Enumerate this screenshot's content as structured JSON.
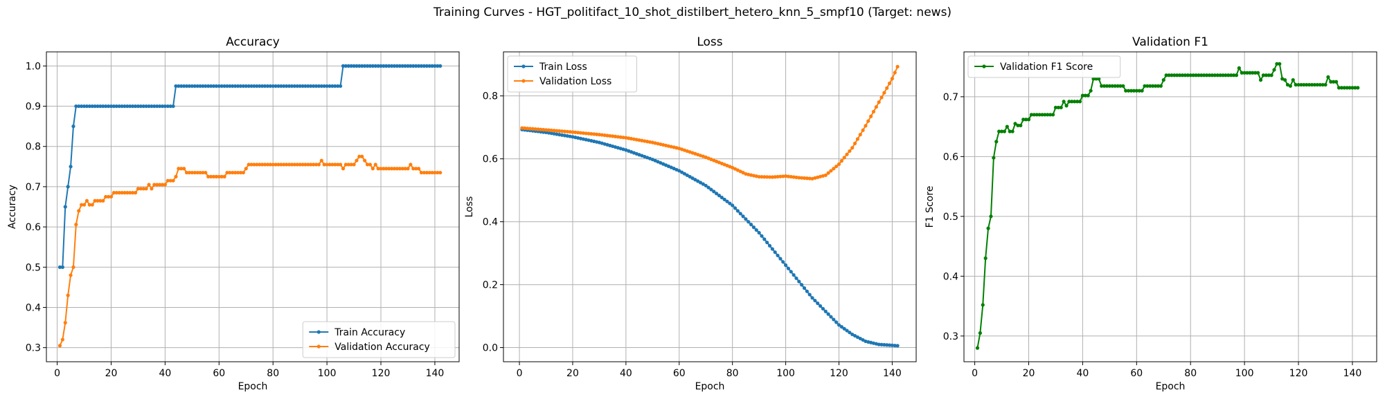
{
  "suptitle": "Training Curves - HGT_politifact_10_shot_distilbert_hetero_knn_5_smpf10 (Target: news)",
  "chart_data": [
    {
      "type": "line",
      "title": "Accuracy",
      "xlabel": "Epoch",
      "ylabel": "Accuracy",
      "xlim": [
        -4,
        149
      ],
      "ylim": [
        0.265,
        1.035
      ],
      "xticks": [
        0,
        20,
        40,
        60,
        80,
        100,
        120,
        140
      ],
      "yticks": [
        0.3,
        0.4,
        0.5,
        0.6,
        0.7,
        0.8,
        0.9,
        1.0
      ],
      "ytick_labels": [
        "0.3",
        "0.4",
        "0.5",
        "0.6",
        "0.7",
        "0.8",
        "0.9",
        "1.0"
      ],
      "grid": true,
      "legend_position": "lower-right",
      "epochs": [
        1,
        142
      ],
      "series": [
        {
          "name": "Train Accuracy",
          "color": "#1f77b4",
          "segments": [
            [
              1,
              0.5
            ],
            [
              2,
              0.5
            ],
            [
              3,
              0.65
            ],
            [
              4,
              0.7
            ],
            [
              5,
              0.75
            ],
            [
              6,
              0.85
            ],
            [
              7,
              0.9
            ],
            [
              43,
              0.9
            ],
            [
              44,
              0.95
            ],
            [
              105,
              0.95
            ],
            [
              106,
              1.0
            ],
            [
              142,
              1.0
            ]
          ]
        },
        {
          "name": "Validation Accuracy",
          "color": "#ff7f0e",
          "segments": [
            [
              1,
              0.305
            ],
            [
              2,
              0.32
            ],
            [
              3,
              0.362
            ],
            [
              4,
              0.43
            ],
            [
              5,
              0.48
            ],
            [
              6,
              0.5
            ],
            [
              7,
              0.606
            ],
            [
              8,
              0.64
            ],
            [
              9,
              0.655
            ],
            [
              11,
              0.665
            ],
            [
              12,
              0.655
            ],
            [
              14,
              0.665
            ],
            [
              17,
              0.665
            ],
            [
              18,
              0.675
            ],
            [
              20,
              0.675
            ],
            [
              21,
              0.685
            ],
            [
              29,
              0.685
            ],
            [
              30,
              0.695
            ],
            [
              33,
              0.695
            ],
            [
              34,
              0.705
            ],
            [
              35,
              0.695
            ],
            [
              36,
              0.705
            ],
            [
              40,
              0.705
            ],
            [
              41,
              0.715
            ],
            [
              43,
              0.715
            ],
            [
              44,
              0.725
            ],
            [
              45,
              0.745
            ],
            [
              47,
              0.745
            ],
            [
              48,
              0.735
            ],
            [
              55,
              0.735
            ],
            [
              56,
              0.725
            ],
            [
              62,
              0.725
            ],
            [
              63,
              0.735
            ],
            [
              69,
              0.735
            ],
            [
              70,
              0.745
            ],
            [
              71,
              0.755
            ],
            [
              97,
              0.755
            ],
            [
              98,
              0.765
            ],
            [
              99,
              0.755
            ],
            [
              105,
              0.755
            ],
            [
              106,
              0.745
            ],
            [
              107,
              0.755
            ],
            [
              110,
              0.755
            ],
            [
              111,
              0.765
            ],
            [
              112,
              0.775
            ],
            [
              113,
              0.775
            ],
            [
              114,
              0.765
            ],
            [
              115,
              0.755
            ],
            [
              116,
              0.755
            ],
            [
              117,
              0.745
            ],
            [
              118,
              0.755
            ],
            [
              119,
              0.745
            ],
            [
              130,
              0.745
            ],
            [
              131,
              0.755
            ],
            [
              132,
              0.745
            ],
            [
              134,
              0.745
            ],
            [
              135,
              0.735
            ],
            [
              142,
              0.735
            ]
          ]
        }
      ]
    },
    {
      "type": "line",
      "title": "Loss",
      "xlabel": "Epoch",
      "ylabel": "Loss",
      "xlim": [
        -6,
        149
      ],
      "ylim": [
        -0.045,
        0.94
      ],
      "xticks": [
        0,
        20,
        40,
        60,
        80,
        100,
        120,
        140
      ],
      "yticks": [
        0.0,
        0.2,
        0.4,
        0.6,
        0.8
      ],
      "ytick_labels": [
        "0.0",
        "0.2",
        "0.4",
        "0.6",
        "0.8"
      ],
      "grid": true,
      "legend_position": "upper-left",
      "epochs": [
        1,
        142
      ],
      "series": [
        {
          "name": "Train Loss",
          "color": "#1f77b4",
          "keypoints": [
            [
              1,
              0.693
            ],
            [
              10,
              0.684
            ],
            [
              20,
              0.67
            ],
            [
              30,
              0.652
            ],
            [
              40,
              0.628
            ],
            [
              50,
              0.598
            ],
            [
              60,
              0.562
            ],
            [
              70,
              0.515
            ],
            [
              80,
              0.452
            ],
            [
              90,
              0.365
            ],
            [
              100,
              0.262
            ],
            [
              110,
              0.158
            ],
            [
              120,
              0.072
            ],
            [
              125,
              0.042
            ],
            [
              130,
              0.02
            ],
            [
              135,
              0.01
            ],
            [
              142,
              0.006
            ]
          ]
        },
        {
          "name": "Validation Loss",
          "color": "#ff7f0e",
          "keypoints": [
            [
              1,
              0.698
            ],
            [
              10,
              0.692
            ],
            [
              20,
              0.685
            ],
            [
              30,
              0.677
            ],
            [
              40,
              0.667
            ],
            [
              50,
              0.652
            ],
            [
              60,
              0.633
            ],
            [
              70,
              0.605
            ],
            [
              80,
              0.572
            ],
            [
              85,
              0.552
            ],
            [
              90,
              0.543
            ],
            [
              95,
              0.542
            ],
            [
              100,
              0.545
            ],
            [
              105,
              0.54
            ],
            [
              110,
              0.537
            ],
            [
              115,
              0.548
            ],
            [
              120,
              0.583
            ],
            [
              125,
              0.635
            ],
            [
              130,
              0.705
            ],
            [
              135,
              0.78
            ],
            [
              140,
              0.855
            ],
            [
              142,
              0.893
            ]
          ]
        }
      ]
    },
    {
      "type": "line",
      "title": "Validation F1",
      "xlabel": "Epoch",
      "ylabel": "F1 Score",
      "xlim": [
        -4,
        149
      ],
      "ylim": [
        0.257,
        0.775
      ],
      "xticks": [
        0,
        20,
        40,
        60,
        80,
        100,
        120,
        140
      ],
      "yticks": [
        0.3,
        0.4,
        0.5,
        0.6,
        0.7
      ],
      "ytick_labels": [
        "0.3",
        "0.4",
        "0.5",
        "0.6",
        "0.7"
      ],
      "grid": true,
      "legend_position": "upper-left",
      "epochs": [
        1,
        142
      ],
      "series": [
        {
          "name": "Validation F1 Score",
          "color": "#008000",
          "segments": [
            [
              1,
              0.28
            ],
            [
              2,
              0.305
            ],
            [
              3,
              0.352
            ],
            [
              4,
              0.43
            ],
            [
              5,
              0.48
            ],
            [
              6,
              0.5
            ],
            [
              7,
              0.598
            ],
            [
              8,
              0.625
            ],
            [
              9,
              0.642
            ],
            [
              11,
              0.642
            ],
            [
              12,
              0.65
            ],
            [
              13,
              0.642
            ],
            [
              14,
              0.642
            ],
            [
              15,
              0.655
            ],
            [
              16,
              0.652
            ],
            [
              17,
              0.652
            ],
            [
              18,
              0.662
            ],
            [
              20,
              0.662
            ],
            [
              21,
              0.67
            ],
            [
              29,
              0.67
            ],
            [
              30,
              0.682
            ],
            [
              32,
              0.682
            ],
            [
              33,
              0.692
            ],
            [
              34,
              0.685
            ],
            [
              35,
              0.692
            ],
            [
              39,
              0.692
            ],
            [
              40,
              0.702
            ],
            [
              42,
              0.702
            ],
            [
              43,
              0.71
            ],
            [
              44,
              0.73
            ],
            [
              46,
              0.73
            ],
            [
              47,
              0.718
            ],
            [
              55,
              0.718
            ],
            [
              56,
              0.71
            ],
            [
              62,
              0.71
            ],
            [
              63,
              0.718
            ],
            [
              69,
              0.718
            ],
            [
              70,
              0.728
            ],
            [
              71,
              0.736
            ],
            [
              97,
              0.736
            ],
            [
              98,
              0.748
            ],
            [
              99,
              0.74
            ],
            [
              105,
              0.74
            ],
            [
              106,
              0.728
            ],
            [
              107,
              0.736
            ],
            [
              110,
              0.736
            ],
            [
              111,
              0.745
            ],
            [
              112,
              0.755
            ],
            [
              113,
              0.755
            ],
            [
              114,
              0.73
            ],
            [
              115,
              0.728
            ],
            [
              116,
              0.72
            ],
            [
              117,
              0.718
            ],
            [
              118,
              0.728
            ],
            [
              119,
              0.72
            ],
            [
              130,
              0.72
            ],
            [
              131,
              0.733
            ],
            [
              132,
              0.725
            ],
            [
              134,
              0.725
            ],
            [
              135,
              0.715
            ],
            [
              142,
              0.715
            ]
          ]
        }
      ]
    }
  ]
}
